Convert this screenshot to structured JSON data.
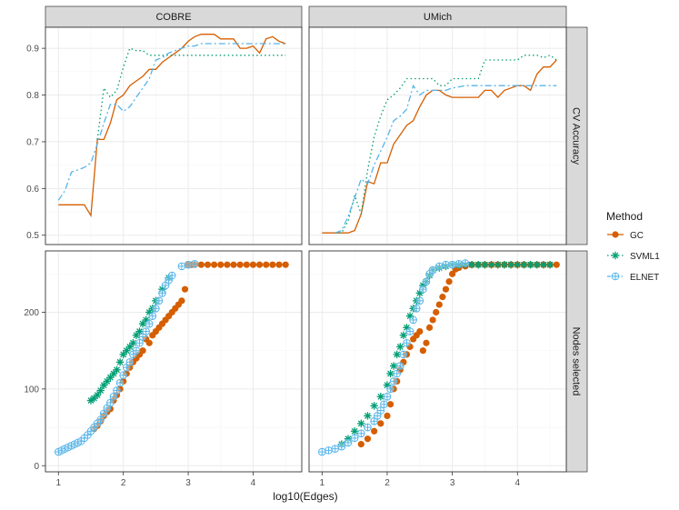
{
  "chart_data": {
    "type": "faceted-line-scatter",
    "xlabel": "log10(Edges)",
    "columns": [
      "COBRE",
      "UMich"
    ],
    "rows": [
      "CV Accuracy",
      "Nodes selected"
    ],
    "xlim": [
      0.8,
      4.75
    ],
    "xticks": [
      1,
      2,
      3,
      4
    ],
    "ylim_accuracy": [
      0.48,
      0.945
    ],
    "yticks_accuracy": [
      0.5,
      0.6,
      0.7,
      0.8,
      0.9
    ],
    "ylim_nodes": [
      -8,
      280
    ],
    "yticks_nodes": [
      0,
      100,
      200
    ],
    "legend": {
      "title": "Method",
      "entries": [
        {
          "name": "GC",
          "color": "#d55e00",
          "line": "solid",
          "marker": "circle"
        },
        {
          "name": "SVML1",
          "color": "#009e73",
          "line": "dotted",
          "marker": "asterisk"
        },
        {
          "name": "ELNET",
          "color": "#56b4e9",
          "line": "dashdot",
          "marker": "circle-plus"
        }
      ]
    },
    "accuracy": {
      "COBRE": {
        "GC": {
          "x": [
            1.0,
            1.1,
            1.2,
            1.3,
            1.4,
            1.5,
            1.6,
            1.7,
            1.8,
            1.9,
            2.0,
            2.1,
            2.2,
            2.3,
            2.4,
            2.5,
            2.6,
            2.7,
            2.8,
            2.9,
            3.0,
            3.1,
            3.2,
            3.3,
            3.4,
            3.5,
            3.6,
            3.7,
            3.8,
            3.9,
            4.0,
            4.1,
            4.2,
            4.3,
            4.4,
            4.5
          ],
          "y": [
            0.565,
            0.565,
            0.565,
            0.565,
            0.565,
            0.542,
            0.705,
            0.705,
            0.74,
            0.79,
            0.8,
            0.82,
            0.83,
            0.84,
            0.855,
            0.855,
            0.87,
            0.88,
            0.89,
            0.9,
            0.915,
            0.925,
            0.93,
            0.93,
            0.93,
            0.92,
            0.92,
            0.92,
            0.9,
            0.9,
            0.905,
            0.89,
            0.92,
            0.925,
            0.915,
            0.91
          ]
        },
        "SVML1": {
          "x": [
            1.6,
            1.7,
            1.8,
            1.9,
            2.0,
            2.1,
            2.2,
            2.3,
            2.4,
            2.5,
            2.6,
            2.7,
            2.8,
            2.9,
            3.0,
            3.5,
            4.0,
            4.5
          ],
          "y": [
            0.705,
            0.815,
            0.795,
            0.81,
            0.86,
            0.9,
            0.895,
            0.895,
            0.885,
            0.885,
            0.885,
            0.885,
            0.885,
            0.885,
            0.885,
            0.885,
            0.885,
            0.885
          ]
        },
        "ELNET": {
          "x": [
            1.0,
            1.1,
            1.2,
            1.3,
            1.4,
            1.5,
            1.6,
            1.7,
            1.8,
            1.9,
            2.0,
            2.1,
            2.2,
            2.3,
            2.4,
            2.5,
            2.6,
            2.7,
            2.8,
            2.9,
            3.0,
            3.1,
            3.2,
            3.3,
            3.5,
            3.8,
            4.0,
            4.2,
            4.5
          ],
          "y": [
            0.575,
            0.595,
            0.635,
            0.64,
            0.645,
            0.655,
            0.695,
            0.74,
            0.78,
            0.78,
            0.765,
            0.775,
            0.795,
            0.815,
            0.835,
            0.875,
            0.88,
            0.89,
            0.895,
            0.9,
            0.905,
            0.905,
            0.91,
            0.91,
            0.91,
            0.91,
            0.91,
            0.91,
            0.91
          ]
        }
      },
      "UMich": {
        "GC": {
          "x": [
            1.0,
            1.1,
            1.2,
            1.3,
            1.4,
            1.5,
            1.6,
            1.7,
            1.8,
            1.9,
            2.0,
            2.1,
            2.2,
            2.3,
            2.4,
            2.5,
            2.6,
            2.7,
            2.8,
            2.9,
            3.0,
            3.1,
            3.2,
            3.3,
            3.4,
            3.5,
            3.6,
            3.7,
            3.8,
            3.9,
            4.0,
            4.1,
            4.2,
            4.3,
            4.4,
            4.5,
            4.6
          ],
          "y": [
            0.505,
            0.505,
            0.505,
            0.505,
            0.505,
            0.51,
            0.545,
            0.615,
            0.61,
            0.655,
            0.655,
            0.695,
            0.715,
            0.735,
            0.745,
            0.775,
            0.8,
            0.81,
            0.81,
            0.8,
            0.795,
            0.795,
            0.795,
            0.795,
            0.795,
            0.81,
            0.81,
            0.795,
            0.81,
            0.815,
            0.82,
            0.82,
            0.81,
            0.845,
            0.86,
            0.86,
            0.875
          ]
        },
        "SVML1": {
          "x": [
            1.2,
            1.3,
            1.4,
            1.5,
            1.6,
            1.7,
            1.8,
            1.9,
            2.0,
            2.1,
            2.2,
            2.3,
            2.4,
            2.5,
            2.6,
            2.7,
            2.8,
            2.9,
            3.0,
            3.1,
            3.2,
            3.3,
            3.4,
            3.5,
            3.7,
            3.9,
            4.0,
            4.1,
            4.2,
            4.3,
            4.4,
            4.5,
            4.6
          ],
          "y": [
            0.505,
            0.505,
            0.53,
            0.585,
            0.545,
            0.64,
            0.71,
            0.755,
            0.79,
            0.8,
            0.815,
            0.835,
            0.835,
            0.835,
            0.835,
            0.835,
            0.82,
            0.82,
            0.835,
            0.835,
            0.835,
            0.835,
            0.835,
            0.875,
            0.875,
            0.875,
            0.875,
            0.885,
            0.885,
            0.885,
            0.88,
            0.885,
            0.875
          ]
        },
        "ELNET": {
          "x": [
            1.2,
            1.3,
            1.4,
            1.5,
            1.6,
            1.7,
            1.8,
            1.9,
            2.0,
            2.1,
            2.2,
            2.3,
            2.4,
            2.5,
            2.6,
            2.7,
            2.8,
            2.9,
            3.0,
            3.2,
            3.5,
            3.8,
            4.0,
            4.3,
            4.6
          ],
          "y": [
            0.505,
            0.51,
            0.54,
            0.58,
            0.62,
            0.61,
            0.65,
            0.68,
            0.71,
            0.745,
            0.755,
            0.77,
            0.82,
            0.8,
            0.81,
            0.81,
            0.81,
            0.81,
            0.815,
            0.82,
            0.82,
            0.82,
            0.82,
            0.82,
            0.82
          ]
        }
      }
    },
    "nodes": {
      "COBRE": {
        "GC": {
          "x": [
            1.55,
            1.6,
            1.65,
            1.7,
            1.75,
            1.8,
            1.85,
            1.9,
            1.95,
            2.0,
            2.05,
            2.1,
            2.15,
            2.2,
            2.25,
            2.3,
            2.35,
            2.4,
            2.45,
            2.5,
            2.55,
            2.6,
            2.65,
            2.7,
            2.75,
            2.8,
            2.85,
            2.9,
            2.95,
            3.0,
            3.05,
            3.1,
            3.2,
            3.3,
            3.4,
            3.5,
            3.6,
            3.7,
            3.8,
            3.9,
            4.0,
            4.1,
            4.2,
            4.3,
            4.4,
            4.5
          ],
          "y": [
            48,
            52,
            58,
            65,
            70,
            74,
            85,
            92,
            100,
            110,
            120,
            128,
            135,
            140,
            145,
            150,
            165,
            160,
            170,
            175,
            180,
            185,
            190,
            195,
            200,
            205,
            210,
            215,
            230,
            262,
            262,
            262,
            262,
            262,
            262,
            262,
            262,
            262,
            262,
            262,
            262,
            262,
            262,
            262,
            262,
            262
          ]
        },
        "SVML1": {
          "x": [
            1.5,
            1.55,
            1.6,
            1.65,
            1.7,
            1.75,
            1.8,
            1.85,
            1.9,
            1.95,
            2.0,
            2.05,
            2.1,
            2.15,
            2.2,
            2.25,
            2.3,
            2.35,
            2.4,
            2.45,
            2.5,
            2.6,
            2.7
          ],
          "y": [
            85,
            88,
            92,
            98,
            105,
            110,
            115,
            120,
            125,
            135,
            145,
            150,
            155,
            160,
            170,
            175,
            185,
            190,
            200,
            205,
            215,
            230,
            245
          ]
        },
        "ELNET": {
          "x": [
            1.0,
            1.05,
            1.1,
            1.15,
            1.2,
            1.25,
            1.3,
            1.35,
            1.4,
            1.45,
            1.5,
            1.55,
            1.6,
            1.65,
            1.7,
            1.75,
            1.8,
            1.85,
            1.9,
            1.95,
            2.0,
            2.05,
            2.1,
            2.15,
            2.2,
            2.25,
            2.3,
            2.35,
            2.4,
            2.45,
            2.5,
            2.55,
            2.6,
            2.65,
            2.7,
            2.75,
            2.9,
            3.0,
            3.1
          ],
          "y": [
            18,
            20,
            22,
            24,
            26,
            28,
            30,
            32,
            36,
            40,
            45,
            50,
            55,
            60,
            68,
            75,
            82,
            90,
            98,
            108,
            118,
            128,
            135,
            145,
            150,
            160,
            168,
            175,
            185,
            195,
            205,
            215,
            225,
            235,
            242,
            248,
            260,
            262,
            263
          ]
        }
      },
      "UMich": {
        "GC": {
          "x": [
            1.6,
            1.7,
            1.8,
            1.9,
            2.0,
            2.05,
            2.1,
            2.15,
            2.2,
            2.25,
            2.3,
            2.35,
            2.4,
            2.45,
            2.5,
            2.55,
            2.6,
            2.65,
            2.7,
            2.75,
            2.8,
            2.85,
            2.9,
            2.95,
            3.0,
            3.05,
            3.1,
            3.2,
            3.3,
            3.4,
            3.5,
            3.6,
            3.7,
            3.8,
            3.9,
            4.0,
            4.1,
            4.2,
            4.3,
            4.4,
            4.5,
            4.6
          ],
          "y": [
            28,
            35,
            45,
            55,
            65,
            80,
            100,
            110,
            125,
            135,
            145,
            155,
            165,
            170,
            175,
            150,
            160,
            180,
            190,
            200,
            210,
            220,
            230,
            240,
            250,
            256,
            258,
            260,
            262,
            262,
            262,
            262,
            262,
            262,
            262,
            262,
            262,
            262,
            262,
            262,
            262,
            262
          ]
        },
        "SVML1": {
          "x": [
            1.3,
            1.4,
            1.5,
            1.6,
            1.7,
            1.8,
            1.9,
            2.0,
            2.05,
            2.1,
            2.15,
            2.2,
            2.25,
            2.3,
            2.35,
            2.4,
            2.45,
            2.5,
            2.55,
            2.6,
            2.65,
            2.7,
            2.8,
            2.9,
            3.0,
            3.1,
            3.2,
            3.3,
            3.4,
            3.5,
            3.6,
            3.7,
            3.8,
            3.9,
            4.0,
            4.1,
            4.2,
            4.3,
            4.4,
            4.5
          ],
          "y": [
            28,
            35,
            45,
            55,
            65,
            78,
            90,
            105,
            120,
            130,
            145,
            155,
            170,
            180,
            195,
            205,
            215,
            225,
            235,
            240,
            248,
            255,
            258,
            260,
            262,
            262,
            262,
            262,
            262,
            262,
            262,
            262,
            262,
            262,
            262,
            262,
            262,
            262,
            262,
            262
          ]
        },
        "ELNET": {
          "x": [
            1.0,
            1.1,
            1.2,
            1.3,
            1.4,
            1.5,
            1.6,
            1.7,
            1.8,
            1.85,
            1.9,
            1.95,
            2.0,
            2.05,
            2.1,
            2.15,
            2.2,
            2.25,
            2.3,
            2.35,
            2.4,
            2.45,
            2.5,
            2.55,
            2.6,
            2.65,
            2.7,
            2.8,
            2.9,
            3.0,
            3.1,
            3.2
          ],
          "y": [
            18,
            20,
            22,
            25,
            30,
            36,
            42,
            50,
            58,
            65,
            72,
            80,
            90,
            100,
            110,
            120,
            130,
            145,
            160,
            175,
            190,
            205,
            215,
            230,
            240,
            250,
            255,
            260,
            262,
            262,
            263,
            264
          ]
        }
      }
    }
  }
}
